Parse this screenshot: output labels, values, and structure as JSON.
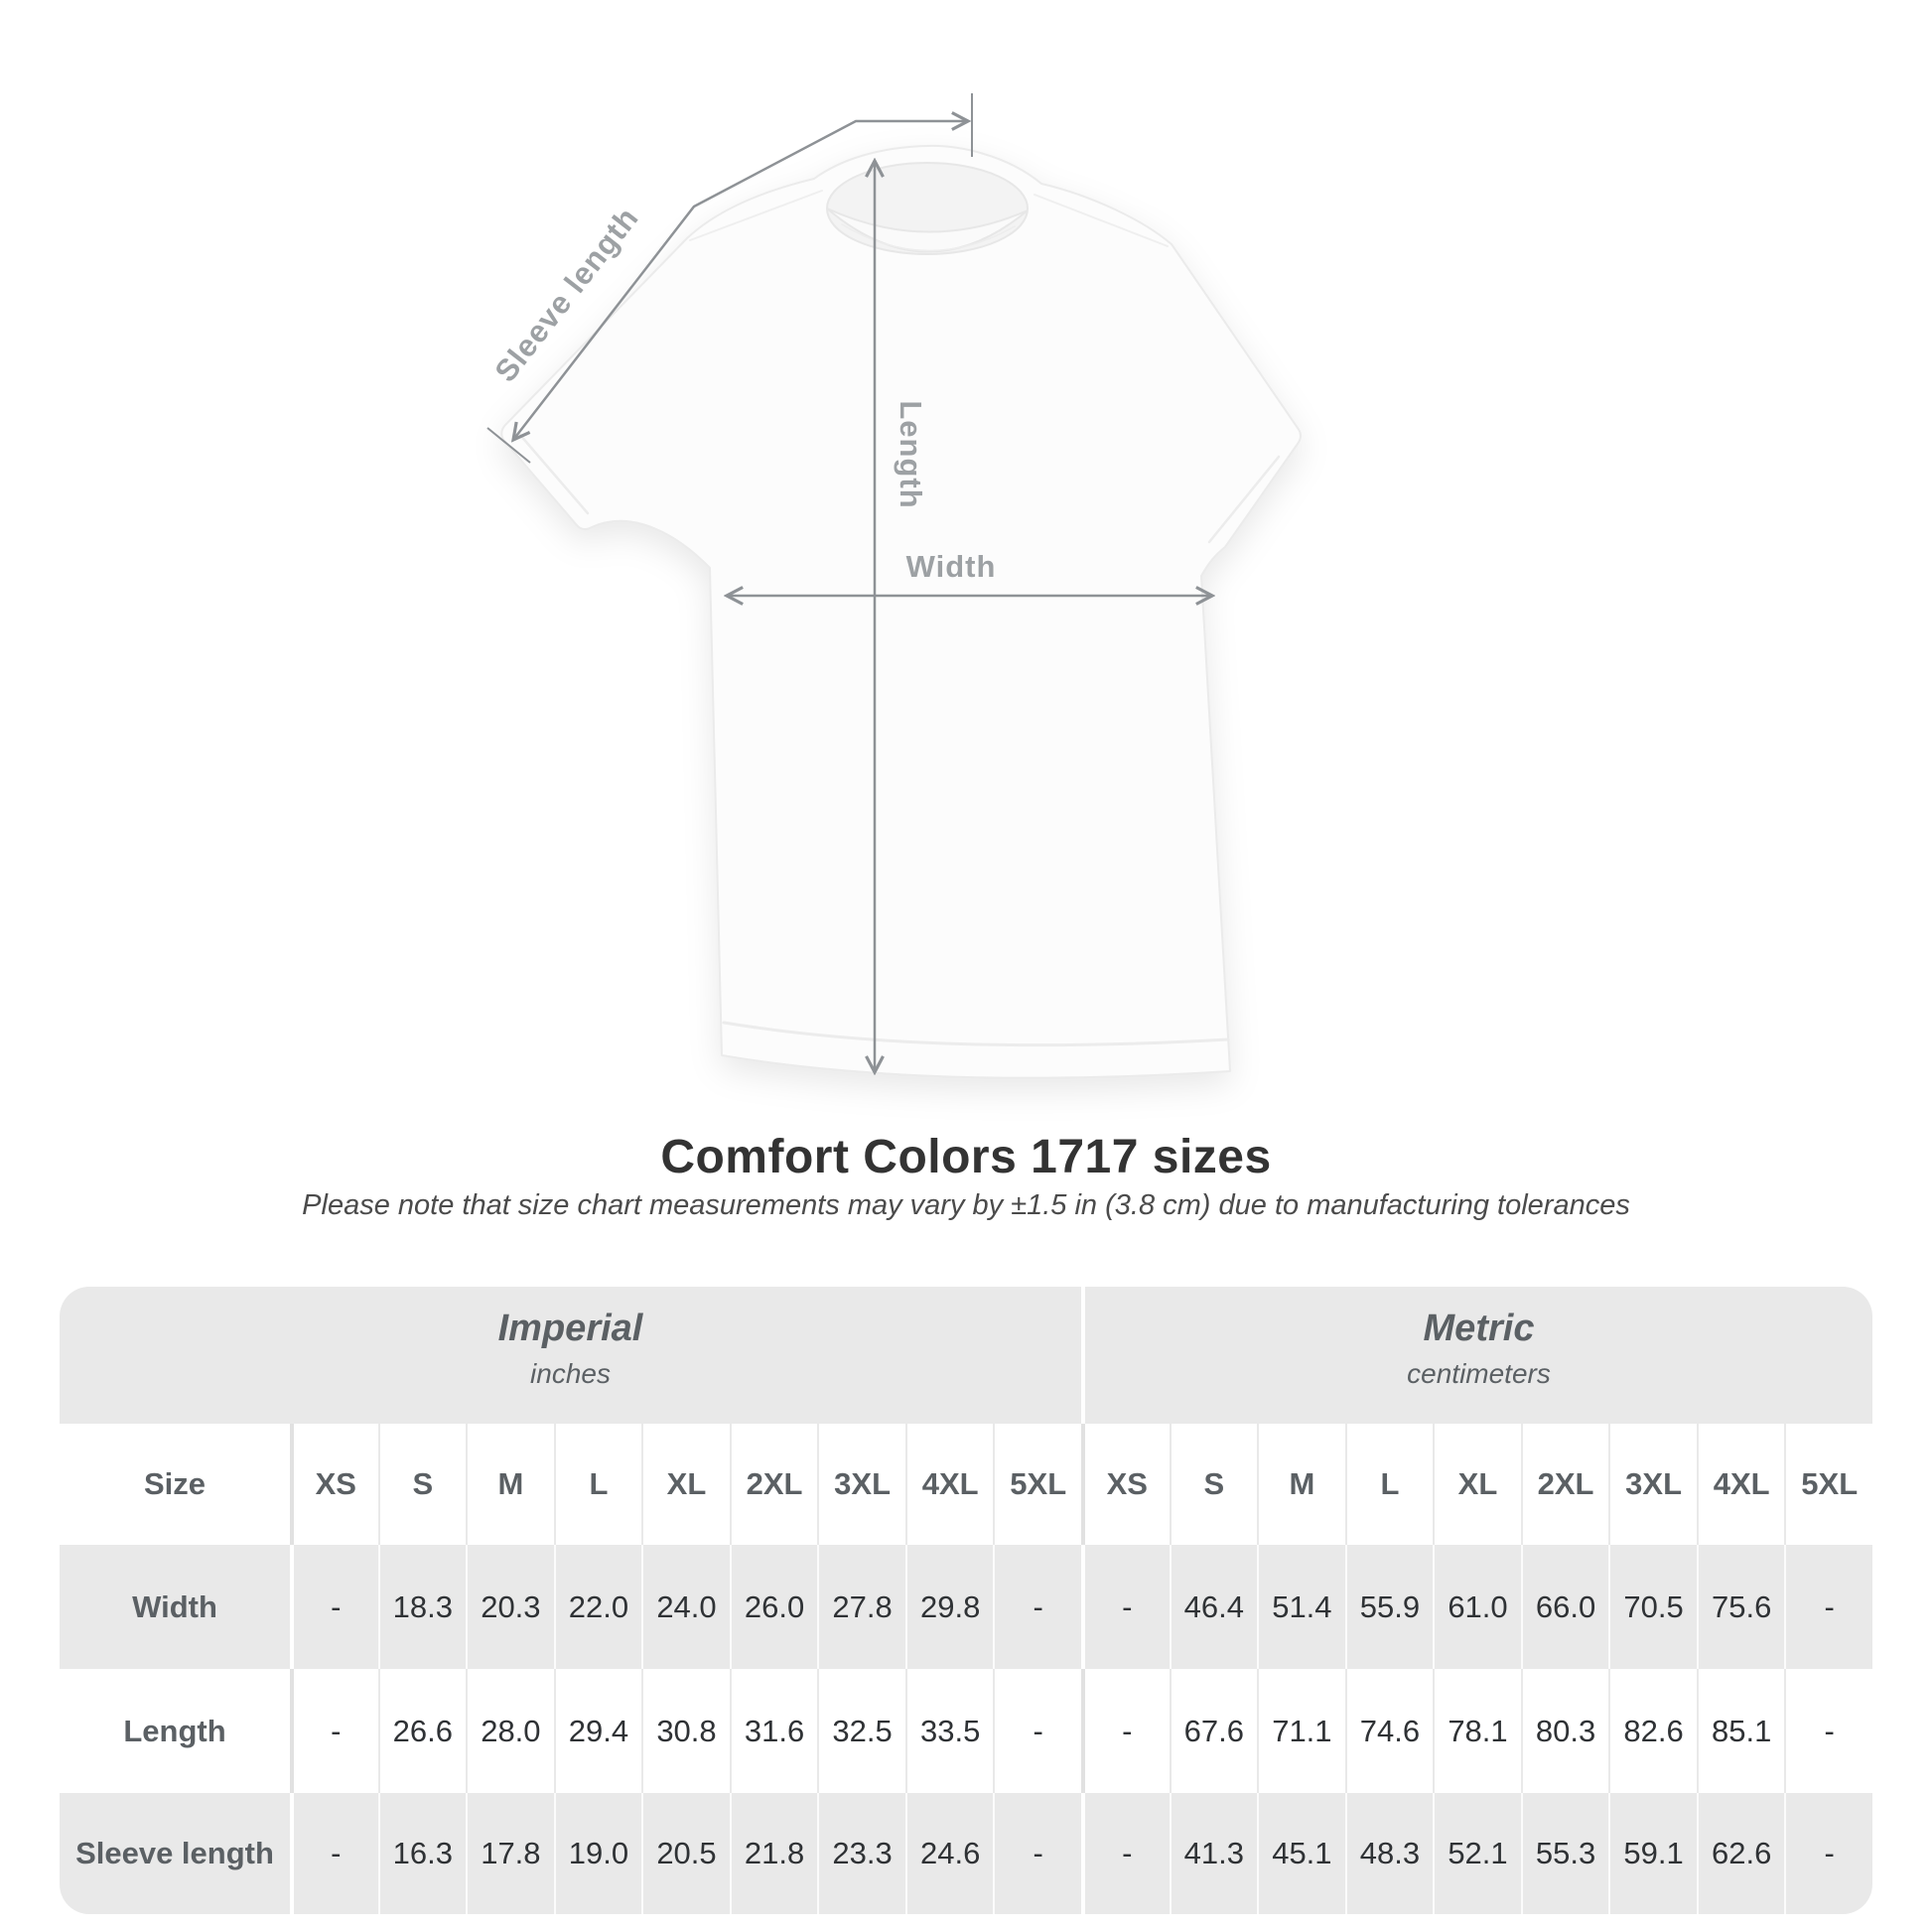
{
  "title": "Comfort Colors 1717 sizes",
  "subtitle": "Please note that size chart measurements may vary by ±1.5 in (3.8 cm) due to manufacturing tolerances",
  "diagram": {
    "sleeve_length_label": "Sleeve length",
    "length_label": "Length",
    "width_label": "Width"
  },
  "colors": {
    "table_band_gray": "#e9e9e9",
    "diagram_line_gray": "#8e9296",
    "diagram_label_gray": "#9da1a4",
    "title_text": "#333333",
    "header_text": "#5b6064",
    "value_text": "#2f3235"
  },
  "chart_data": {
    "type": "table",
    "title": "Comfort Colors 1717 sizes",
    "note": "Please note that size chart measurements may vary by ±1.5 in (3.8 cm) due to manufacturing tolerances",
    "corner_header": "Size",
    "sizes": [
      "XS",
      "S",
      "M",
      "L",
      "XL",
      "2XL",
      "3XL",
      "4XL",
      "5XL"
    ],
    "groups": [
      {
        "label": "Imperial",
        "unit": "inches"
      },
      {
        "label": "Metric",
        "unit": "centimeters"
      }
    ],
    "rows": [
      {
        "label": "Width",
        "imperial": [
          "-",
          "18.3",
          "20.3",
          "22.0",
          "24.0",
          "26.0",
          "27.8",
          "29.8",
          "-"
        ],
        "metric": [
          "-",
          "46.4",
          "51.4",
          "55.9",
          "61.0",
          "66.0",
          "70.5",
          "75.6",
          "-"
        ]
      },
      {
        "label": "Length",
        "imperial": [
          "-",
          "26.6",
          "28.0",
          "29.4",
          "30.8",
          "31.6",
          "32.5",
          "33.5",
          "-"
        ],
        "metric": [
          "-",
          "67.6",
          "71.1",
          "74.6",
          "78.1",
          "80.3",
          "82.6",
          "85.1",
          "-"
        ]
      },
      {
        "label": "Sleeve length",
        "imperial": [
          "-",
          "16.3",
          "17.8",
          "19.0",
          "20.5",
          "21.8",
          "23.3",
          "24.6",
          "-"
        ],
        "metric": [
          "-",
          "41.3",
          "45.1",
          "48.3",
          "52.1",
          "55.3",
          "59.1",
          "62.6",
          "-"
        ]
      }
    ]
  }
}
